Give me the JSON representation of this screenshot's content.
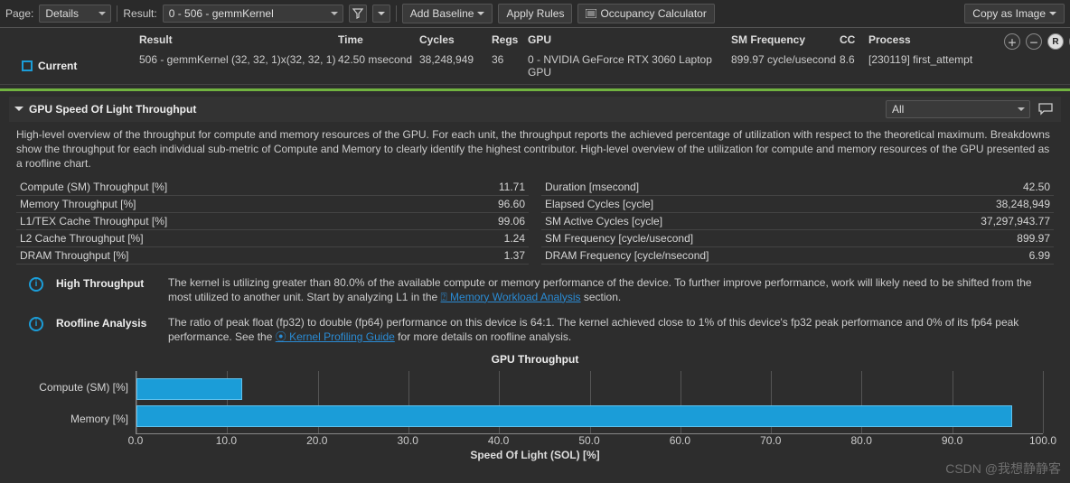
{
  "toolbar": {
    "page_label": "Page:",
    "page_value": "Details",
    "result_label": "Result:",
    "result_value": "0 -   506 - gemmKernel",
    "add_baseline": "Add Baseline",
    "apply_rules": "Apply Rules",
    "occupancy": "Occupancy Calculator",
    "copy_image": "Copy as Image"
  },
  "columns": {
    "current": "Current",
    "result": "Result",
    "time": "Time",
    "cycles": "Cycles",
    "regs": "Regs",
    "gpu": "GPU",
    "smfreq": "SM Frequency",
    "cc": "CC",
    "process": "Process"
  },
  "row": {
    "result": "506 - gemmKernel (32, 32, 1)x(32, 32, 1)",
    "time": "42.50 msecond",
    "cycles": "38,248,949",
    "regs": "36",
    "gpu": "0 - NVIDIA GeForce RTX 3060 Laptop GPU",
    "smfreq": "899.97 cycle/usecond",
    "cc": "8.6",
    "process": "[230119] first_attempt"
  },
  "section": {
    "title": "GPU Speed Of Light Throughput",
    "filter": "All",
    "description": "High-level overview of the throughput for compute and memory resources of the GPU. For each unit, the throughput reports the achieved percentage of utilization with respect to the theoretical maximum. Breakdowns show the throughput for each individual sub-metric of Compute and Memory to clearly identify the highest contributor. High-level overview of the utilization for compute and memory resources of the GPU presented as a roofline chart."
  },
  "metrics_left": [
    {
      "k": "Compute (SM) Throughput [%]",
      "v": "11.71"
    },
    {
      "k": "Memory Throughput [%]",
      "v": "96.60"
    },
    {
      "k": "L1/TEX Cache Throughput [%]",
      "v": "99.06"
    },
    {
      "k": "L2 Cache Throughput [%]",
      "v": "1.24"
    },
    {
      "k": "DRAM Throughput [%]",
      "v": "1.37"
    }
  ],
  "metrics_right": [
    {
      "k": "Duration [msecond]",
      "v": "42.50"
    },
    {
      "k": "Elapsed Cycles [cycle]",
      "v": "38,248,949"
    },
    {
      "k": "SM Active Cycles [cycle]",
      "v": "37,297,943.77"
    },
    {
      "k": "SM Frequency [cycle/usecond]",
      "v": "899.97"
    },
    {
      "k": "DRAM Frequency [cycle/nsecond]",
      "v": "6.99"
    }
  ],
  "notes": {
    "high_title": "High Throughput",
    "high_text_a": "The kernel is utilizing greater than 80.0% of the available compute or memory performance of the device. To further improve performance, work will likely need to be shifted from the most utilized to another unit. Start by analyzing L1 in the ",
    "high_link": "⍰ Memory Workload Analysis",
    "high_text_b": " section.",
    "roof_title": "Roofline Analysis",
    "roof_text_a": "The ratio of peak float (fp32) to double (fp64) performance on this device is 64:1. The kernel achieved close to 1% of this device's fp32 peak performance and 0% of its fp64 peak performance. See the ",
    "roof_link": "⦿ Kernel Profiling Guide",
    "roof_text_b": " for more details on roofline analysis."
  },
  "chart": {
    "title": "GPU Throughput",
    "ylabels": [
      "Compute (SM) [%]",
      "Memory [%]"
    ],
    "values": [
      11.71,
      96.6
    ],
    "xmax": 100,
    "xticks": [
      0,
      10,
      20,
      30,
      40,
      50,
      60,
      70,
      80,
      90,
      100
    ],
    "xtick_labels": [
      "0.0",
      "10.0",
      "20.0",
      "30.0",
      "40.0",
      "50.0",
      "60.0",
      "70.0",
      "80.0",
      "90.0",
      "100.0"
    ],
    "xaxis_label": "Speed Of Light (SOL) [%]",
    "bar_color": "#1b9dd8",
    "grid_color": "#555555"
  },
  "watermark": "CSDN @我想静静客"
}
